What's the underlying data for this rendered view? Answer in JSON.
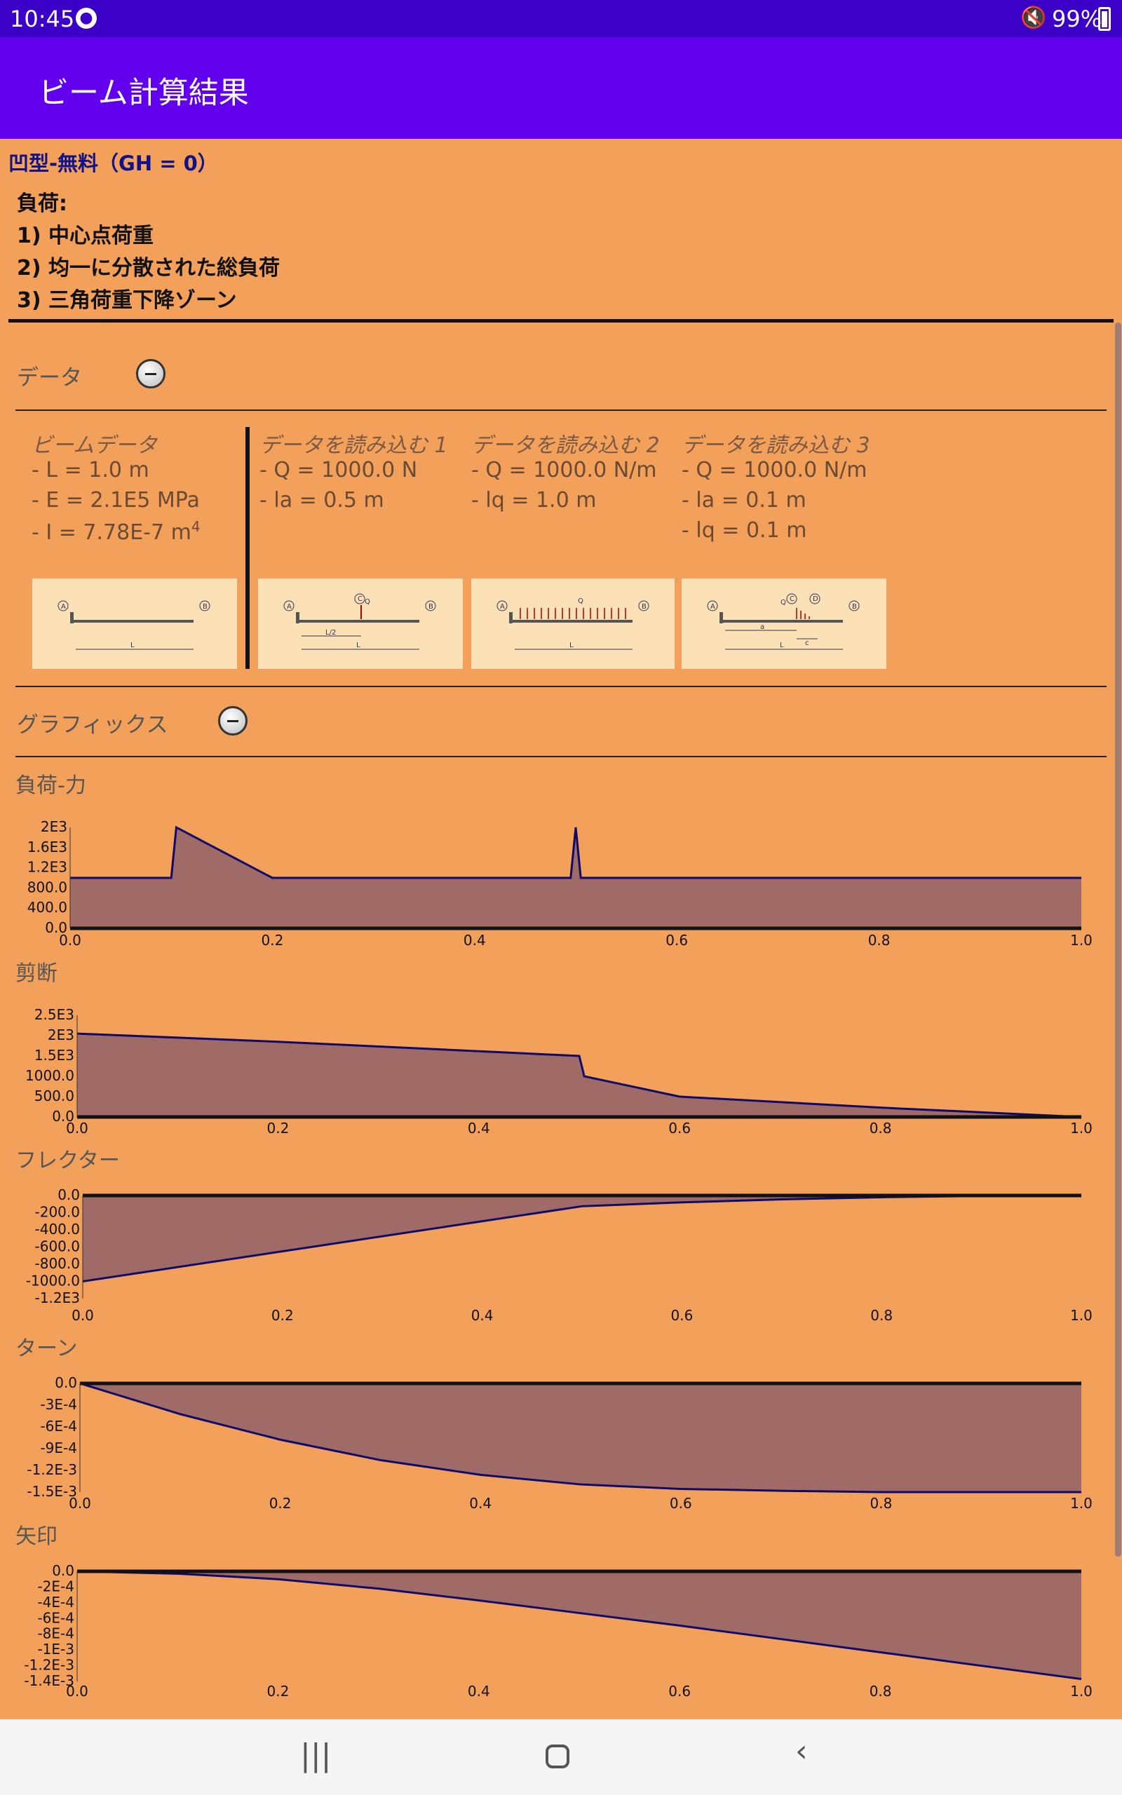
{
  "status": {
    "time": "10:45",
    "battery": "99%"
  },
  "appbar": {
    "title": "ビーム計算結果"
  },
  "header": {
    "title": "凹型-無料（GH = 0）",
    "loads_heading": "負荷:",
    "loads": [
      "1) 中心点荷重",
      "2) 均一に分散された総負荷",
      "3) 三角荷重下降ゾーン"
    ]
  },
  "data_section": {
    "label": "データ",
    "zoom_icon": "zoom-out-icon"
  },
  "beam_data": {
    "heading": "ビームデータ",
    "L": "- L = 1.0 m",
    "E": "- E = 2.1E5 MPa",
    "I": "- I = 7.78E-7 m",
    "I_sup": "4"
  },
  "load_data": [
    {
      "heading": "データを読み込む 1",
      "lines": [
        "- Q = 1000.0 N",
        "- la = 0.5 m"
      ]
    },
    {
      "heading": "データを読み込む 2",
      "lines": [
        "- Q = 1000.0 N/m",
        "- lq = 1.0 m"
      ]
    },
    {
      "heading": "データを読み込む 3",
      "lines": [
        "- Q = 1000.0 N/m",
        "- la = 0.1 m",
        "- lq = 0.1 m"
      ]
    }
  ],
  "thumbnails": {
    "beam": {
      "a": "A",
      "b": "B",
      "l": "L"
    },
    "load1": {
      "a": "A",
      "b": "B",
      "c": "C",
      "q": "Q",
      "l2": "L/2",
      "l": "L"
    },
    "load2": {
      "a": "A",
      "b": "B",
      "q": "Q",
      "l": "L"
    },
    "load3": {
      "a": "A",
      "b": "B",
      "c": "C",
      "d": "D",
      "q": "Q",
      "la": "a",
      "l": "L",
      "c2": "c"
    }
  },
  "graphics_section": {
    "label": "グラフィックス",
    "zoom_icon": "zoom-out-icon"
  },
  "colors": {
    "fill": "#A06A66",
    "line": "#0D0A6B",
    "axis": "#111111"
  },
  "chart_data": [
    {
      "type": "area",
      "title": "負荷-力",
      "x": [
        0.0,
        0.1,
        0.105,
        0.2,
        0.495,
        0.5,
        0.505,
        1.0
      ],
      "y": [
        1000,
        1000,
        2000,
        1000,
        1000,
        2000,
        1000,
        1000
      ],
      "xticks": [
        "0.0",
        "0.2",
        "0.4",
        "0.6",
        "0.8",
        "1.0"
      ],
      "yticks": [
        "2E3",
        "1.6E3",
        "1.2E3",
        "800.0",
        "400.0",
        "0.0"
      ],
      "ylim": [
        0,
        2000
      ],
      "xlim": [
        0,
        1
      ]
    },
    {
      "type": "area",
      "title": "剪断",
      "x": [
        0.0,
        0.1,
        0.2,
        0.5,
        0.505,
        0.6,
        0.8,
        1.0
      ],
      "y": [
        2050,
        1950,
        1850,
        1500,
        1000,
        500,
        230,
        0
      ],
      "xticks": [
        "0.0",
        "0.2",
        "0.4",
        "0.6",
        "0.8",
        "1.0"
      ],
      "yticks": [
        "2.5E3",
        "2E3",
        "1.5E3",
        "1000.0",
        "500.0",
        "0.0"
      ],
      "ylim": [
        0,
        2500
      ],
      "xlim": [
        0,
        1
      ]
    },
    {
      "type": "area",
      "title": "フレクター",
      "x": [
        0.0,
        0.5,
        0.6,
        0.7,
        0.8,
        0.9,
        1.0
      ],
      "y": [
        -1000,
        -125,
        -80,
        -45,
        -20,
        -5,
        0
      ],
      "xticks": [
        "0.0",
        "0.2",
        "0.4",
        "0.6",
        "0.8",
        "1.0"
      ],
      "yticks": [
        "0.0",
        "-200.0",
        "-400.0",
        "-600.0",
        "-800.0",
        "-1000.0",
        "-1.2E3"
      ],
      "ylim": [
        -1200,
        0
      ],
      "xlim": [
        0,
        1
      ]
    },
    {
      "type": "area",
      "title": "ターン",
      "x": [
        0.0,
        0.1,
        0.2,
        0.3,
        0.4,
        0.5,
        0.6,
        0.7,
        0.8,
        1.0
      ],
      "y": [
        0,
        -0.00048,
        -0.00088,
        -0.0012,
        -0.00143,
        -0.00158,
        -0.00165,
        -0.00168,
        -0.0017,
        -0.0017
      ],
      "xticks": [
        "0.0",
        "0.2",
        "0.4",
        "0.6",
        "0.8",
        "1.0"
      ],
      "yticks": [
        "0.0",
        "-3E-4",
        "-6E-4",
        "-9E-4",
        "-1.2E-3",
        "-1.5E-3"
      ],
      "ylim": [
        -0.0017,
        0
      ],
      "xlim": [
        0,
        1
      ]
    },
    {
      "type": "area",
      "title": "矢印",
      "x": [
        0.0,
        0.1,
        0.2,
        0.3,
        0.4,
        0.5,
        0.6,
        0.7,
        0.8,
        0.9,
        1.0
      ],
      "y": [
        0,
        -3e-05,
        -0.0001,
        -0.00022,
        -0.00037,
        -0.00053,
        -0.00069,
        -0.00086,
        -0.00103,
        -0.0012,
        -0.00137
      ],
      "xticks": [
        "0.0",
        "0.2",
        "0.4",
        "0.6",
        "0.8",
        "1.0"
      ],
      "yticks": [
        "0.0",
        "-2E-4",
        "-4E-4",
        "-6E-4",
        "-8E-4",
        "-1E-3",
        "-1.2E-3",
        "-1.4E-3"
      ],
      "ylim": [
        -0.0014,
        0
      ],
      "xlim": [
        0,
        1
      ]
    }
  ],
  "navbar": {
    "recents_icon": "recents-icon",
    "home_icon": "home-icon",
    "back_icon": "back-icon"
  }
}
